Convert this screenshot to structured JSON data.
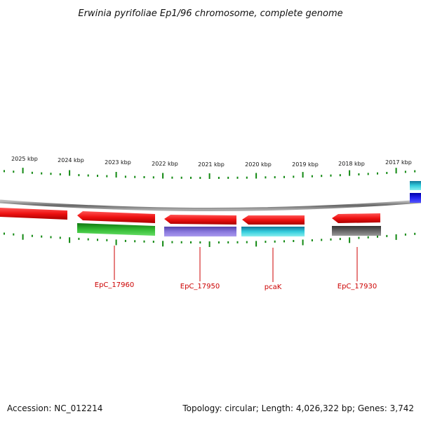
{
  "title": "Erwinia pyrifoliae Ep1/96 chromosome, complete genome",
  "footer": {
    "accession": "Accession: NC_012214",
    "summary": "Topology: circular; Length: 4,026,322 bp; Genes: 3,742"
  },
  "kbp_labels": [
    "2025 kbp",
    "2024 kbp",
    "2023 kbp",
    "2022 kbp",
    "2021 kbp",
    "2020 kbp",
    "2019 kbp",
    "2018 kbp",
    "2017 kbp"
  ],
  "gene_labels": [
    "EpC_17960",
    "EpC_17950",
    "pcaK",
    "EpC_17930"
  ],
  "colors": {
    "arrow_red": "#ee1111",
    "green_bar": "#22aa22",
    "purple_bar": "#7766cc",
    "cyan_bar": "#22bbcc",
    "gray_bar": "#555555",
    "blue_block": "#1111dd",
    "tick_green": "#118811",
    "backbone": "#888888",
    "label_red": "#cc0000"
  }
}
